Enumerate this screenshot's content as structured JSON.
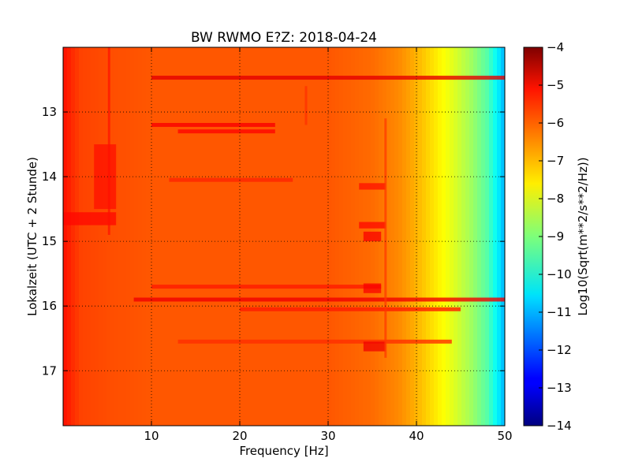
{
  "chart_data": {
    "type": "heatmap",
    "title": "BW RWMO E?Z: 2018-04-24",
    "xlabel": "Frequency [Hz]",
    "ylabel": "Lokalzeit (UTC + 2 Stunde)",
    "xlim": [
      0,
      50
    ],
    "ylim": [
      17.85,
      12.0
    ],
    "y_axis_inverted": true,
    "xticks": [
      "10",
      "20",
      "30",
      "40",
      "50"
    ],
    "yticks": [
      "13",
      "14",
      "15",
      "16",
      "17"
    ],
    "grid": "dotted",
    "colorscale": "jet",
    "colorbar": {
      "label": "Log10(Sqrt(m**2/s**2/Hz))",
      "range": [
        -14,
        -4
      ],
      "ticks": [
        "−4",
        "−5",
        "−6",
        "−7",
        "−8",
        "−9",
        "−10",
        "−11",
        "−12",
        "−13",
        "−14"
      ]
    },
    "frequency_profile": {
      "frequency_hz": [
        0,
        2,
        5,
        10,
        20,
        30,
        35,
        38,
        40,
        42,
        44,
        46,
        48,
        49,
        50
      ],
      "value_log10": [
        -5.4,
        -5.9,
        -6.0,
        -6.1,
        -6.1,
        -6.1,
        -6.3,
        -6.6,
        -7.0,
        -7.5,
        -8.0,
        -8.6,
        -9.4,
        -10.2,
        -11.0
      ]
    },
    "horizontal_features": [
      {
        "time": 12.47,
        "f_start": 10,
        "f_end": 50,
        "value_log10": -5.0
      },
      {
        "time": 13.2,
        "f_start": 10,
        "f_end": 24,
        "value_log10": -5.2
      },
      {
        "time": 13.3,
        "f_start": 13,
        "f_end": 24,
        "value_log10": -5.3
      },
      {
        "time": 14.05,
        "f_start": 12,
        "f_end": 26,
        "value_log10": -5.6
      },
      {
        "time": 15.7,
        "f_start": 10,
        "f_end": 36,
        "value_log10": -5.5
      },
      {
        "time": 15.9,
        "f_start": 8,
        "f_end": 50,
        "value_log10": -5.1
      },
      {
        "time": 16.05,
        "f_start": 20,
        "f_end": 45,
        "value_log10": -5.5
      },
      {
        "time": 16.55,
        "f_start": 13,
        "f_end": 44,
        "value_log10": -5.7
      }
    ],
    "patches": [
      {
        "f_start": 0,
        "f_end": 6,
        "t_start": 14.55,
        "t_end": 14.75,
        "value_log10": -5.3
      },
      {
        "f_start": 3.5,
        "f_end": 6,
        "t_start": 13.5,
        "t_end": 14.5,
        "value_log10": -5.4
      },
      {
        "f_start": 33.5,
        "f_end": 36.5,
        "t_start": 14.1,
        "t_end": 14.2,
        "value_log10": -5.4
      },
      {
        "f_start": 33.5,
        "f_end": 36.5,
        "t_start": 14.7,
        "t_end": 14.8,
        "value_log10": -5.3
      },
      {
        "f_start": 34,
        "f_end": 36,
        "t_start": 14.85,
        "t_end": 15.0,
        "value_log10": -5.2
      },
      {
        "f_start": 34,
        "f_end": 36,
        "t_start": 15.65,
        "t_end": 15.8,
        "value_log10": -5.2
      },
      {
        "f_start": 34,
        "f_end": 36.5,
        "t_start": 16.55,
        "t_end": 16.7,
        "value_log10": -5.1
      }
    ],
    "vertical_features": [
      {
        "frequency_hz": 5.2,
        "t_start": 12.0,
        "t_end": 14.9,
        "value_log10": -5.4
      },
      {
        "frequency_hz": 27.5,
        "t_start": 12.6,
        "t_end": 13.2,
        "value_log10": -5.7
      },
      {
        "frequency_hz": 36.5,
        "t_start": 13.1,
        "t_end": 16.8,
        "value_log10": -5.8
      }
    ]
  }
}
